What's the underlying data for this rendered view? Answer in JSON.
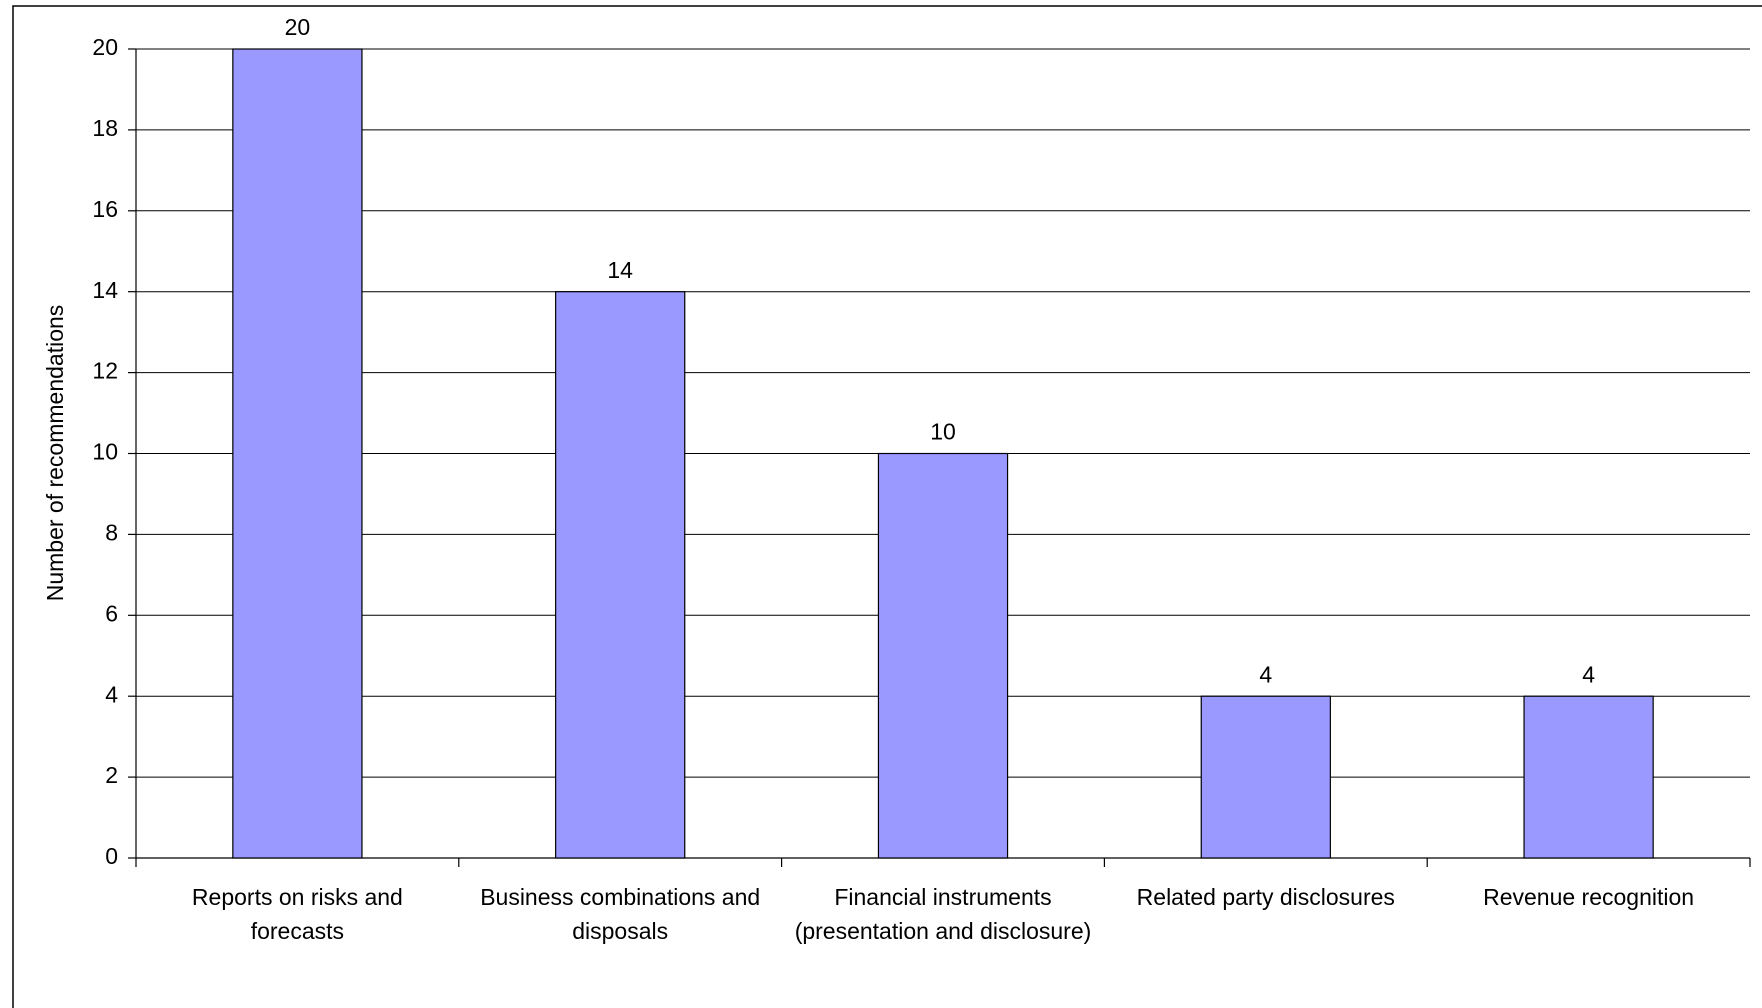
{
  "chart_data": {
    "type": "bar",
    "y_label": "Number of recommendations",
    "categories": [
      "Reports on risks and forecasts",
      "Business combinations and disposals",
      "Financial instruments (presentation and disclosure)",
      "Related party disclosures",
      "Revenue recognition"
    ],
    "values": [
      20,
      14,
      10,
      4,
      4
    ],
    "color": "#9999ff",
    "ylim": [
      0,
      20
    ],
    "yticks": [
      0,
      2,
      4,
      6,
      8,
      10,
      12,
      14,
      16,
      18,
      20
    ],
    "grid": true
  }
}
